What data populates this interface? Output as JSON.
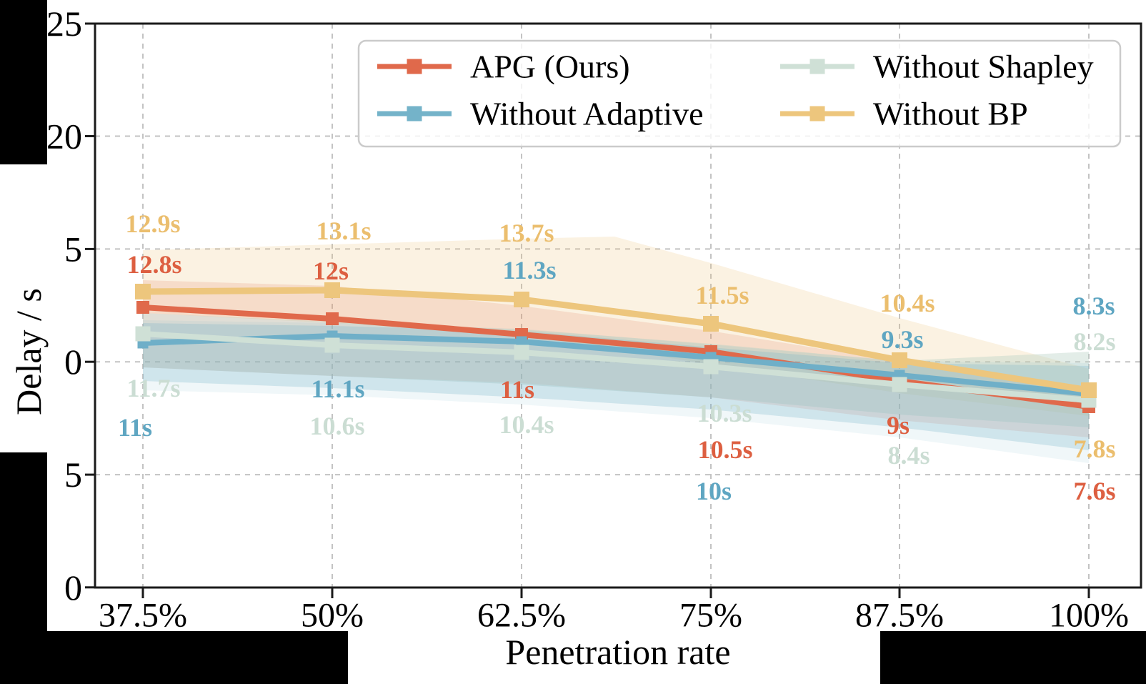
{
  "figure": {
    "kind": "ablation-delay-line-chart",
    "background": "#ffffff",
    "grid_color": "#c3c3c3",
    "spine_color": "#1a1a1a"
  },
  "axes": {
    "x_label": "Penetration rate",
    "y_label": "Delay / s",
    "x_tick_labels": [
      "37.5%",
      "50%",
      "62.5%",
      "75%",
      "87.5%",
      "100%"
    ],
    "y_tick_labels": [
      "25",
      "20",
      "5",
      "0",
      "5",
      "0"
    ],
    "y_range": [
      0,
      25
    ]
  },
  "legend": {
    "items": [
      {
        "label": "APG (Ours)",
        "color": "#E0694B"
      },
      {
        "label": "Without Adaptive",
        "color": "#74B3C9"
      },
      {
        "label": "Without Shapley",
        "color": "#CFE0D6"
      },
      {
        "label": "Without BP",
        "color": "#EDC67D"
      }
    ]
  },
  "chart_data": {
    "type": "line",
    "title": "",
    "xlabel": "Penetration rate",
    "ylabel": "Delay / s",
    "categories": [
      "37.5%",
      "50%",
      "62.5%",
      "75%",
      "87.5%",
      "100%"
    ],
    "ylim": [
      0,
      25
    ],
    "grid": true,
    "legend_position": "upper center",
    "uncertainty_bands": true,
    "series": [
      {
        "name": "APG (Ours)",
        "color": "#E0694B",
        "label_color": "#DD5F41",
        "values": [
          12.8,
          12,
          11,
          10.5,
          9,
          7.6
        ],
        "point_labels": [
          "12.8s",
          "12s",
          "11s",
          "10.5s",
          "9s",
          "7.6s"
        ]
      },
      {
        "name": "Without Adaptive",
        "color": "#6FAFC8",
        "label_color": "#5FA6C2",
        "values": [
          11,
          11.1,
          11.3,
          10,
          9.3,
          8.3
        ],
        "point_labels": [
          "11s",
          "11.1s",
          "11.3s",
          "10s",
          "9.3s",
          "8.3s"
        ]
      },
      {
        "name": "Without Shapley",
        "color": "#CFE0D6",
        "label_color": "#CBDDD3",
        "values": [
          11.7,
          10.6,
          10.4,
          10.3,
          8.4,
          8.2
        ],
        "point_labels": [
          "11.7s",
          "10.6s",
          "10.4s",
          "10.3s",
          "8.4s",
          "8.2s"
        ]
      },
      {
        "name": "Without BP",
        "color": "#EDC67D",
        "label_color": "#EBBE6E",
        "values": [
          12.9,
          13.1,
          13.7,
          11.5,
          10.4,
          7.8
        ],
        "point_labels": [
          "12.9s",
          "13.1s",
          "13.7s",
          "11.5s",
          "10.4s",
          "7.8s"
        ]
      }
    ]
  }
}
